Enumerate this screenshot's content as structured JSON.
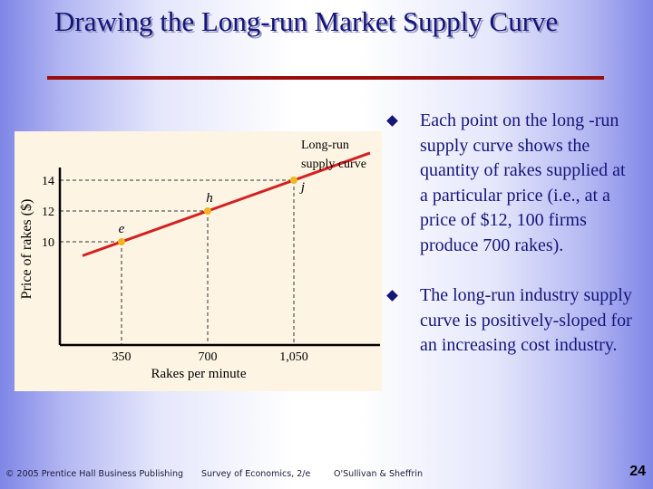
{
  "slide": {
    "title": "Drawing the Long-run Market Supply Curve"
  },
  "chart_data": {
    "type": "line",
    "xlabel": "Rakes per minute",
    "ylabel": "Price of rakes ($)",
    "x_ticks": [
      "350",
      "700",
      "1,050"
    ],
    "y_ticks": [
      "10",
      "12",
      "14"
    ],
    "points": [
      {
        "label": "e",
        "x": 350,
        "y": 10
      },
      {
        "label": "h",
        "x": 700,
        "y": 12
      },
      {
        "label": "j",
        "x": 1050,
        "y": 14
      }
    ],
    "curve_label_line1": "Long-run",
    "curve_label_line2": "supply curve",
    "colors": {
      "curve": "#d42020",
      "points": "#f2b520",
      "axes": "#000000",
      "background": "#fdf4e3"
    }
  },
  "bullets": [
    "Each point on the long -run supply curve shows the quantity of rakes supplied at a particular price (i.e., at a price of $12, 100 firms produce 700 rakes).",
    "The long-run industry supply curve is positively-sloped for an increasing cost industry."
  ],
  "footer": {
    "copyright": "© 2005 Prentice Hall Business Publishing",
    "book": "Survey of Economics, 2/e",
    "authors": "O'Sullivan & Sheffrin",
    "page_number": "24"
  }
}
